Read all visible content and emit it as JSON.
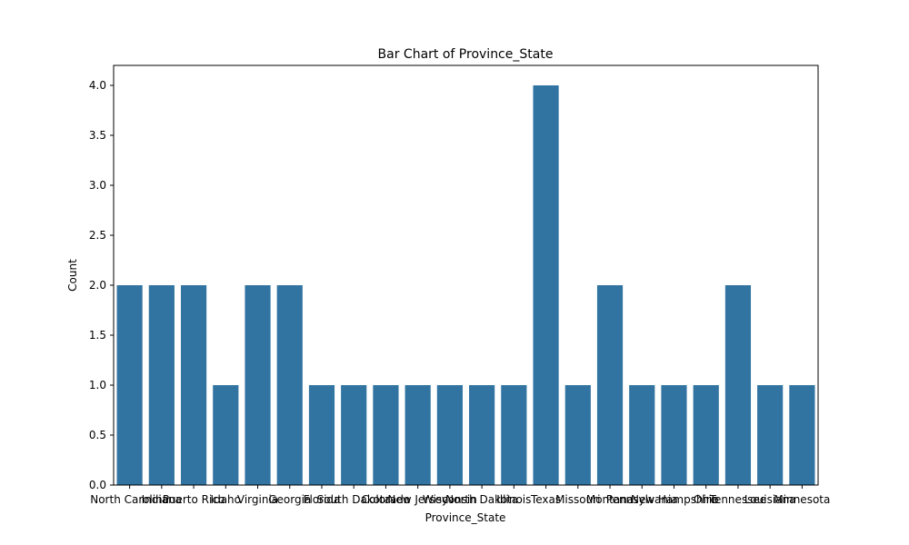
{
  "chart_data": {
    "type": "bar",
    "title": "Bar Chart of Province_State",
    "xlabel": "Province_State",
    "ylabel": "Count",
    "ylim": [
      0,
      4.2
    ],
    "yticks": [
      0.0,
      0.5,
      1.0,
      1.5,
      2.0,
      2.5,
      3.0,
      3.5,
      4.0
    ],
    "ytick_labels": [
      "0.0",
      "0.5",
      "1.0",
      "1.5",
      "2.0",
      "2.5",
      "3.0",
      "3.5",
      "4.0"
    ],
    "bar_color": "#3274a1",
    "grid": false,
    "categories": [
      "North Carolina",
      "Indiana",
      "Puerto Rico",
      "Idaho",
      "Virginia",
      "Georgia",
      "Florida",
      "South Dakota",
      "Colorado",
      "New Jersey",
      "Wisconsin",
      "North Dakota",
      "Illinois",
      "Texas",
      "Missouri",
      "Montana",
      "Pennsylvania",
      "New Hampshire",
      "Ohio",
      "Tennessee",
      "Louisiana",
      "Minnesota"
    ],
    "values": [
      2,
      2,
      2,
      1,
      2,
      2,
      1,
      1,
      1,
      1,
      1,
      1,
      1,
      4,
      1,
      2,
      1,
      1,
      1,
      2,
      1,
      1
    ]
  }
}
